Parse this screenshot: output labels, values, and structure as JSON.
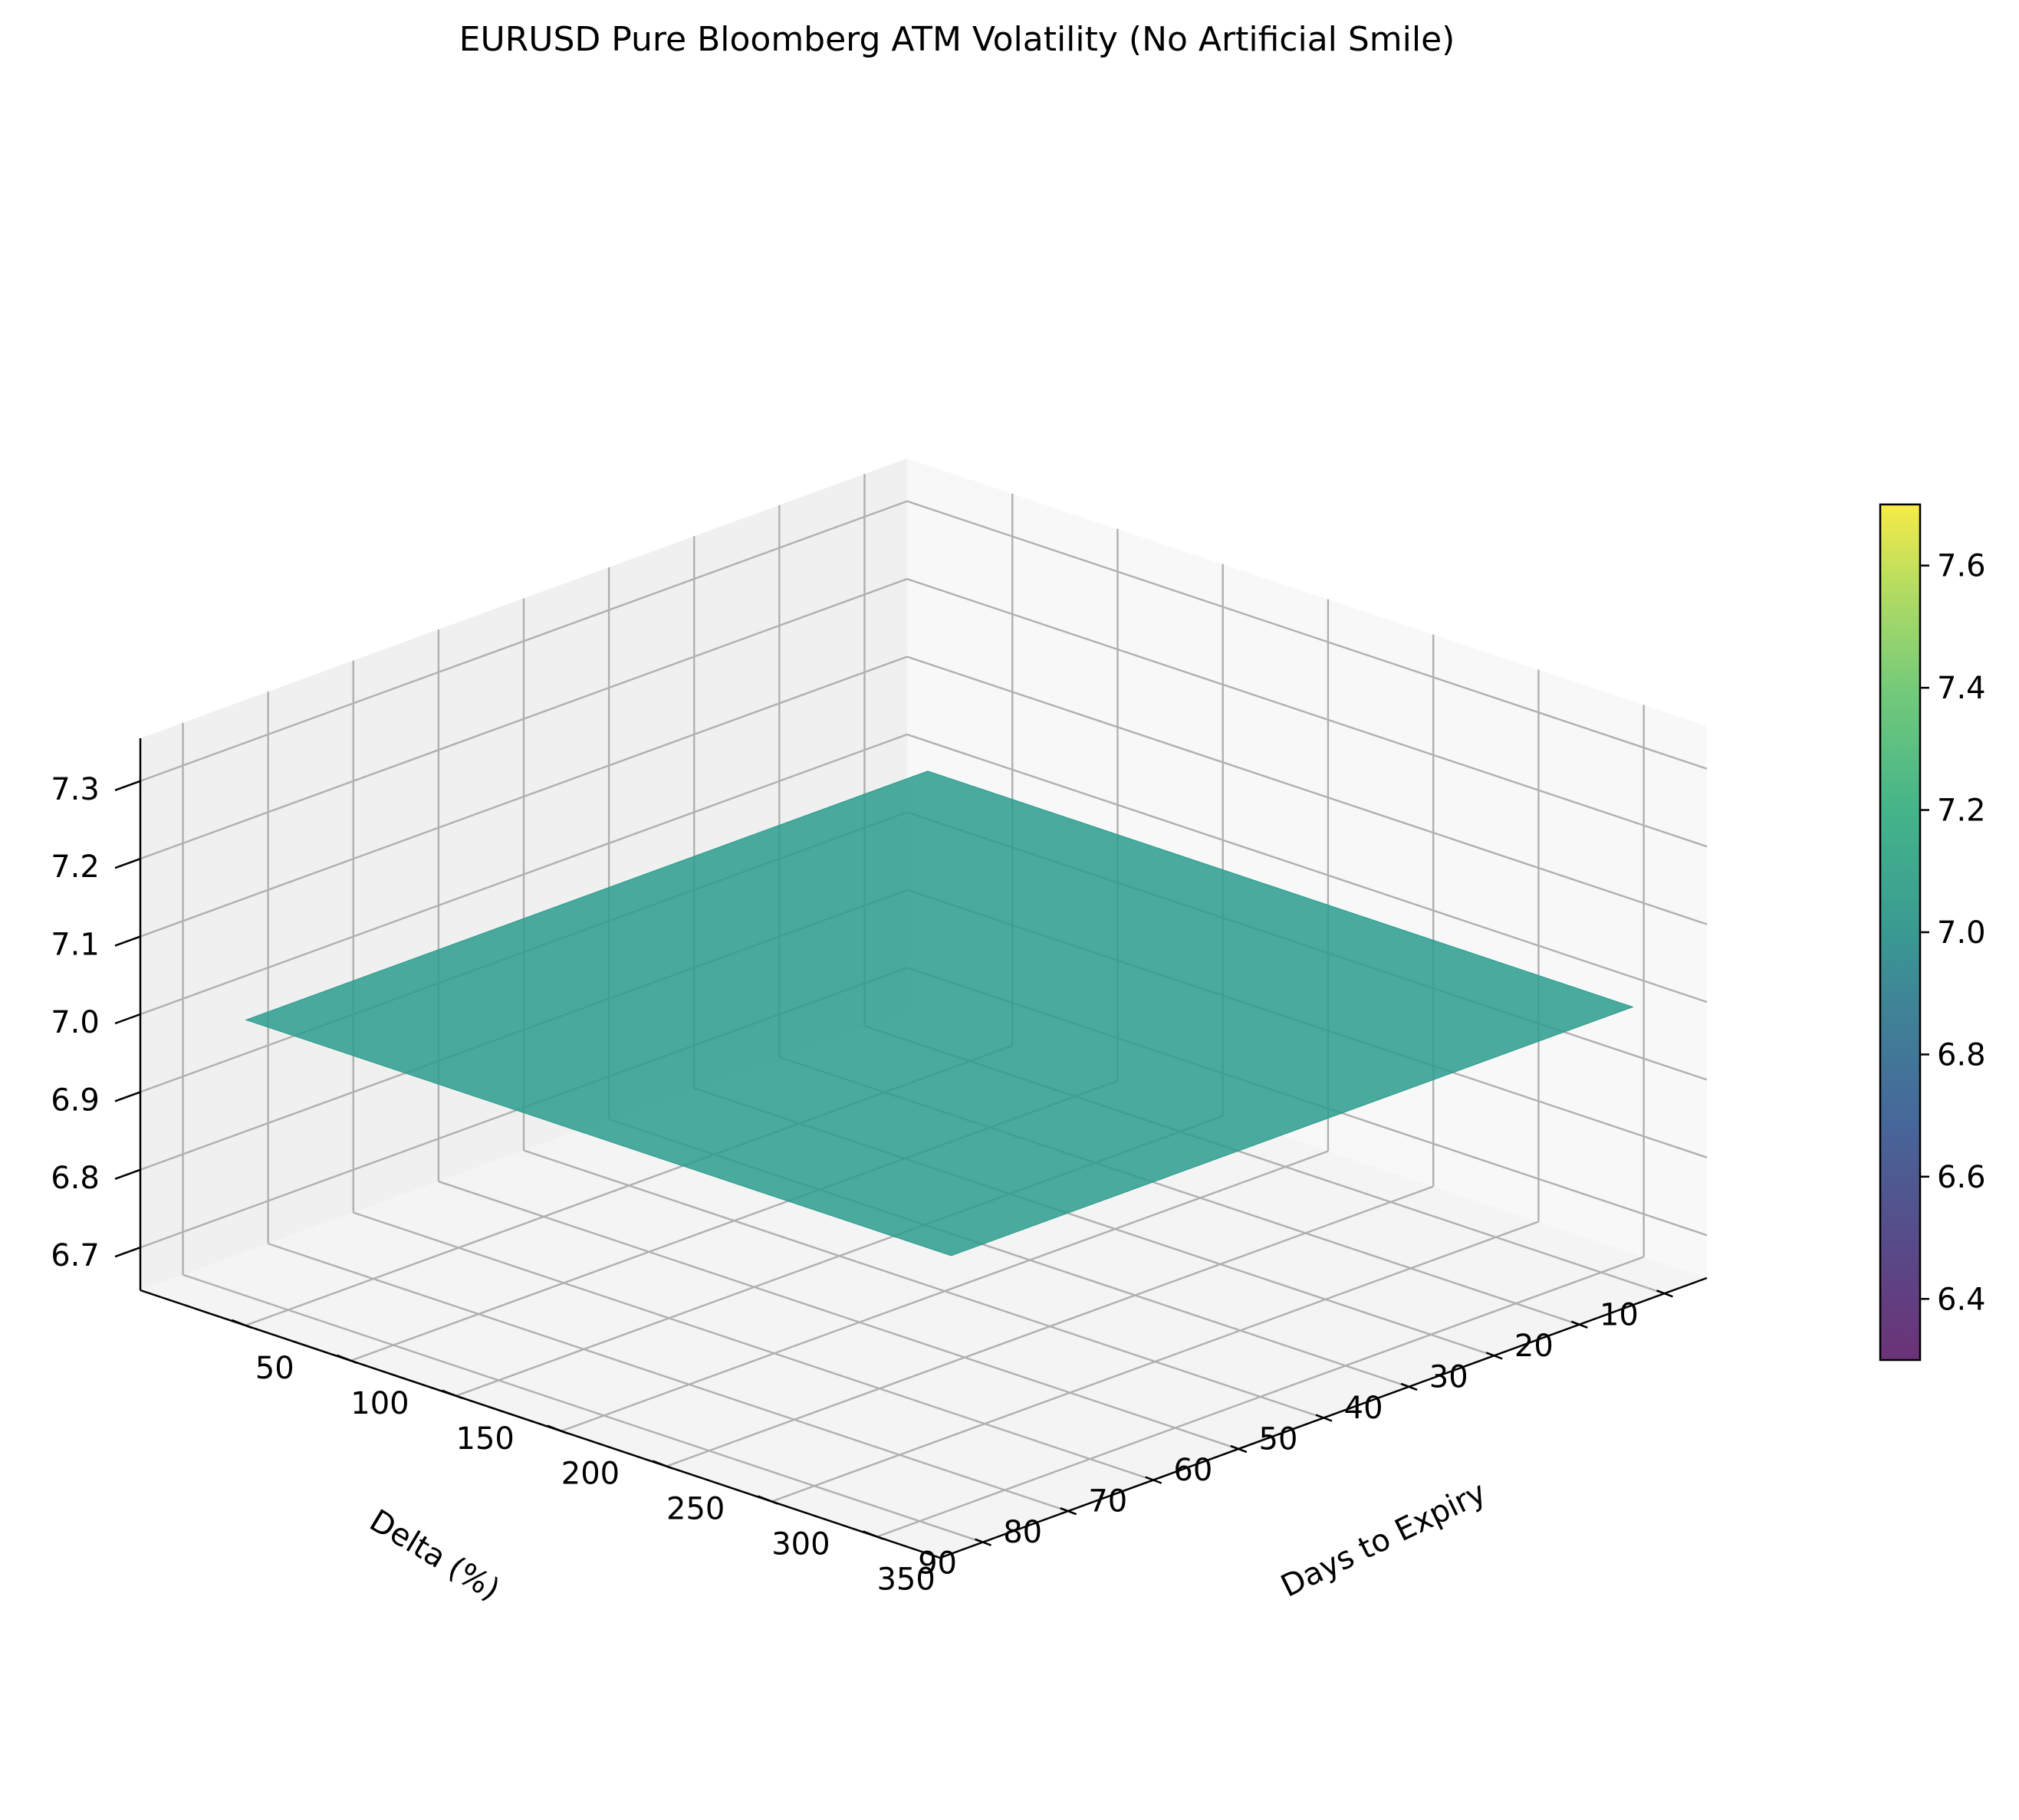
{
  "chart_data": {
    "type": "surface",
    "title": "EURUSD Pure Bloomberg ATM Volatility (No Artificial Smile)",
    "xlabel": "Delta (%)",
    "ylabel": "Days to Expiry",
    "zlabel": "",
    "x_ticks": [
      "10",
      "20",
      "30",
      "40",
      "50",
      "60",
      "70",
      "80",
      "90"
    ],
    "y_ticks": [
      "50",
      "100",
      "150",
      "200",
      "250",
      "300",
      "350"
    ],
    "z_ticks": [
      "6.7",
      "6.8",
      "6.9",
      "7.0",
      "7.1",
      "7.2",
      "7.3"
    ],
    "x_range": [
      5,
      95
    ],
    "y_range": [
      0,
      380
    ],
    "z_range": [
      6.645,
      7.355
    ],
    "surface": {
      "x": [
        10,
        90
      ],
      "y": [
        30,
        365
      ],
      "z_constant": 7.0,
      "color": "#2a9c8d"
    },
    "colorbar": {
      "ticks": [
        "6.4",
        "6.6",
        "6.8",
        "7.0",
        "7.2",
        "7.4",
        "7.6"
      ],
      "range": [
        6.3,
        7.7
      ],
      "colormap": "viridis"
    },
    "grid": true
  }
}
